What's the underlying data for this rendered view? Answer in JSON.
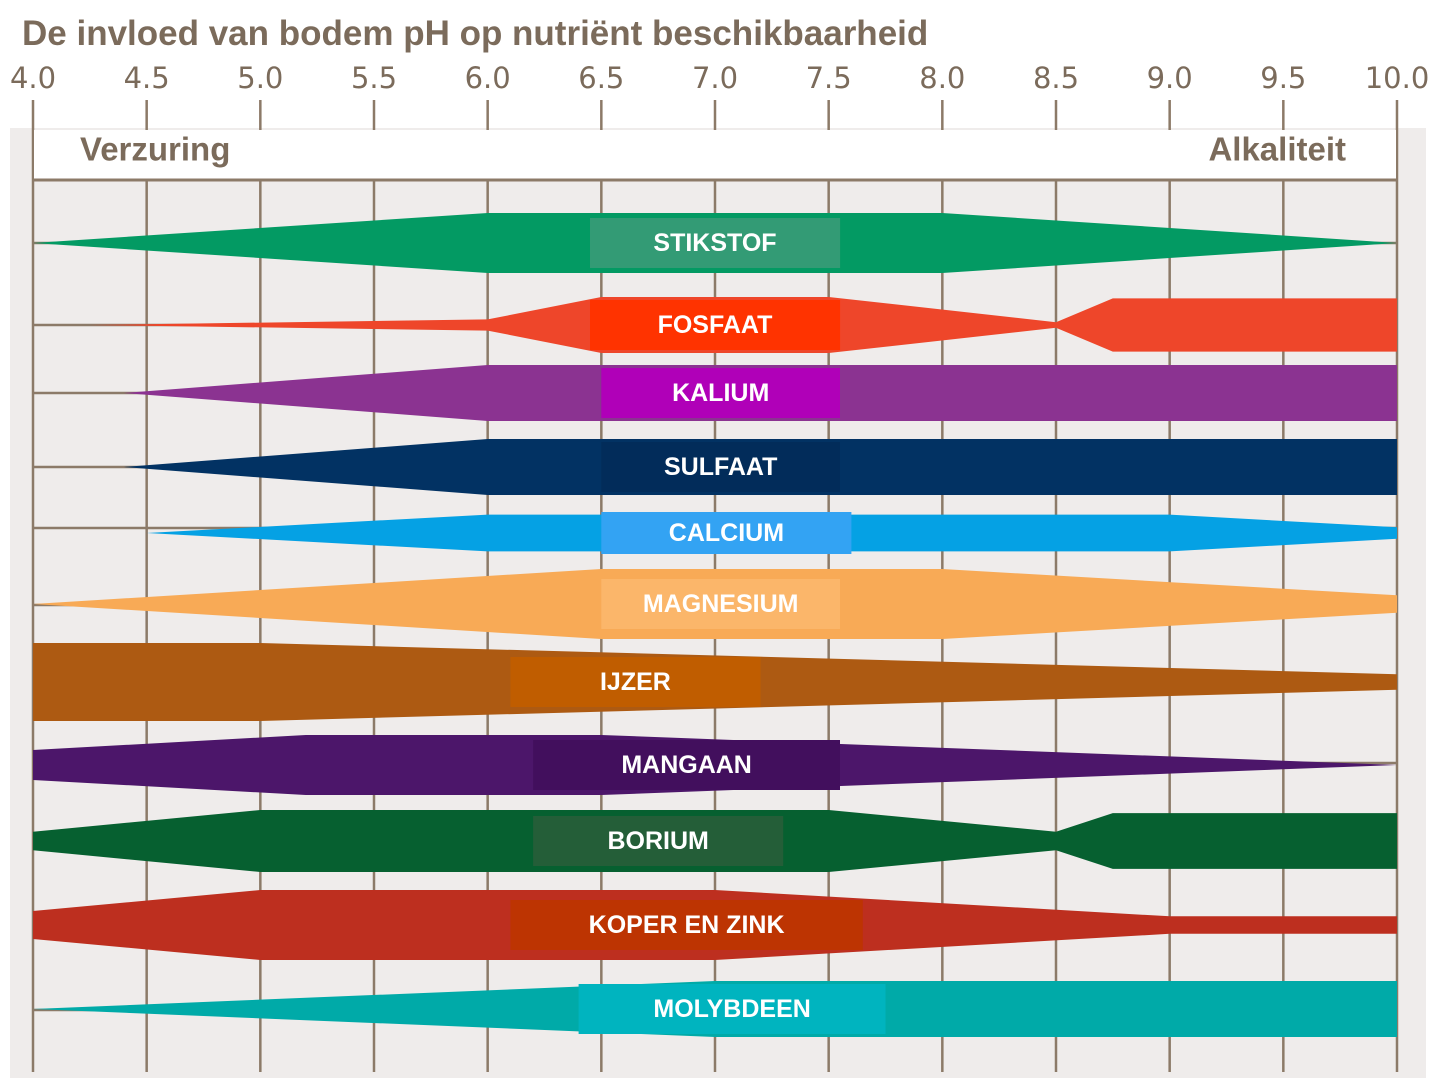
{
  "title": "De invloed van bodem pH op nutriënt beschikbaarheid",
  "chart_data": {
    "type": "area",
    "title": "De invloed van bodem pH op nutriënt beschikbaarheid",
    "xlabel": "",
    "ylabel": "",
    "xlim": [
      4.0,
      10.0
    ],
    "x_tick_labels": [
      "4.0",
      "4.5",
      "5.0",
      "5.5",
      "6.0",
      "6.5",
      "7.0",
      "7.5",
      "8.0",
      "8.5",
      "9.0",
      "9.5",
      "10.0"
    ],
    "grid": true,
    "left_annotation": "Verzuring",
    "right_annotation": "Alkaliteit",
    "value_note": "relative availability (0-1) at each pH",
    "series": [
      {
        "name": "STIKSTOF",
        "color": "#039a63",
        "label_box_color": "#339b75",
        "label_box_ph": [
          6.45,
          7.55
        ],
        "points": [
          [
            4.0,
            0.0
          ],
          [
            6.0,
            1.0
          ],
          [
            8.0,
            1.0
          ],
          [
            10.0,
            0.0
          ]
        ]
      },
      {
        "name": "FOSFAAT",
        "color": "#ee462a",
        "label_box_color": "#ff3300",
        "label_box_ph": [
          6.45,
          7.55
        ],
        "points": [
          [
            4.25,
            0.0
          ],
          [
            6.0,
            0.2
          ],
          [
            6.5,
            1.0
          ],
          [
            7.5,
            1.0
          ],
          [
            8.5,
            0.1
          ],
          [
            8.75,
            0.95
          ],
          [
            10.0,
            0.95
          ]
        ]
      },
      {
        "name": "KALIUM",
        "color": "#8b3391",
        "label_box_color": "#b000b8",
        "label_box_ph": [
          6.5,
          7.55
        ],
        "points": [
          [
            4.4,
            0.0
          ],
          [
            6.0,
            1.0
          ],
          [
            10.0,
            1.0
          ]
        ]
      },
      {
        "name": "SULFAAT",
        "color": "#023263",
        "label_box_color": "#022c5a",
        "label_box_ph": [
          6.5,
          7.55
        ],
        "points": [
          [
            4.4,
            0.0
          ],
          [
            6.0,
            1.0
          ],
          [
            10.0,
            1.0
          ]
        ]
      },
      {
        "name": "CALCIUM",
        "color": "#05a1e4",
        "label_box_color": "#33a3f3",
        "label_box_ph": [
          6.5,
          7.6
        ],
        "points": [
          [
            4.5,
            0.0
          ],
          [
            6.0,
            0.8
          ],
          [
            9.0,
            0.8
          ],
          [
            10.0,
            0.25
          ]
        ]
      },
      {
        "name": "MAGNESIUM",
        "color": "#f8aa56",
        "label_box_color": "#fbb66a",
        "label_box_ph": [
          6.5,
          7.55
        ],
        "points": [
          [
            4.0,
            0.0
          ],
          [
            6.5,
            1.0
          ],
          [
            8.0,
            1.0
          ],
          [
            10.0,
            0.25
          ]
        ]
      },
      {
        "name": "IJZER",
        "color": "#ad5a12",
        "label_box_color": "#c05d00",
        "label_box_ph": [
          6.1,
          7.2
        ],
        "points": [
          [
            4.0,
            1.0
          ],
          [
            5.0,
            1.0
          ],
          [
            10.0,
            0.2
          ]
        ]
      },
      {
        "name": "MANGAAN",
        "color": "#4c166a",
        "label_box_color": "#420f5d",
        "label_box_ph": [
          6.2,
          7.55
        ],
        "points": [
          [
            4.0,
            0.5
          ],
          [
            5.2,
            1.0
          ],
          [
            6.5,
            1.0
          ],
          [
            10.0,
            0.0
          ]
        ]
      },
      {
        "name": "BORIUM",
        "color": "#066030",
        "label_box_color": "#245e38",
        "label_box_ph": [
          6.2,
          7.3
        ],
        "points": [
          [
            4.0,
            0.3
          ],
          [
            5.0,
            1.0
          ],
          [
            7.5,
            1.0
          ],
          [
            8.5,
            0.3
          ],
          [
            8.75,
            0.9
          ],
          [
            10.0,
            0.9
          ]
        ]
      },
      {
        "name": "KOPER EN ZINK",
        "color": "#bd2f1f",
        "label_box_color": "#bd3402",
        "label_box_ph": [
          6.1,
          7.65
        ],
        "points": [
          [
            4.0,
            0.4
          ],
          [
            5.0,
            1.0
          ],
          [
            7.0,
            1.0
          ],
          [
            9.0,
            0.25
          ],
          [
            10.0,
            0.25
          ]
        ]
      },
      {
        "name": "MOLYBDEEN",
        "color": "#00aaa8",
        "label_box_color": "#00b4bf",
        "label_box_ph": [
          6.4,
          7.75
        ],
        "points": [
          [
            4.0,
            0.0
          ],
          [
            7.0,
            1.0
          ],
          [
            10.0,
            1.0
          ]
        ]
      }
    ]
  }
}
